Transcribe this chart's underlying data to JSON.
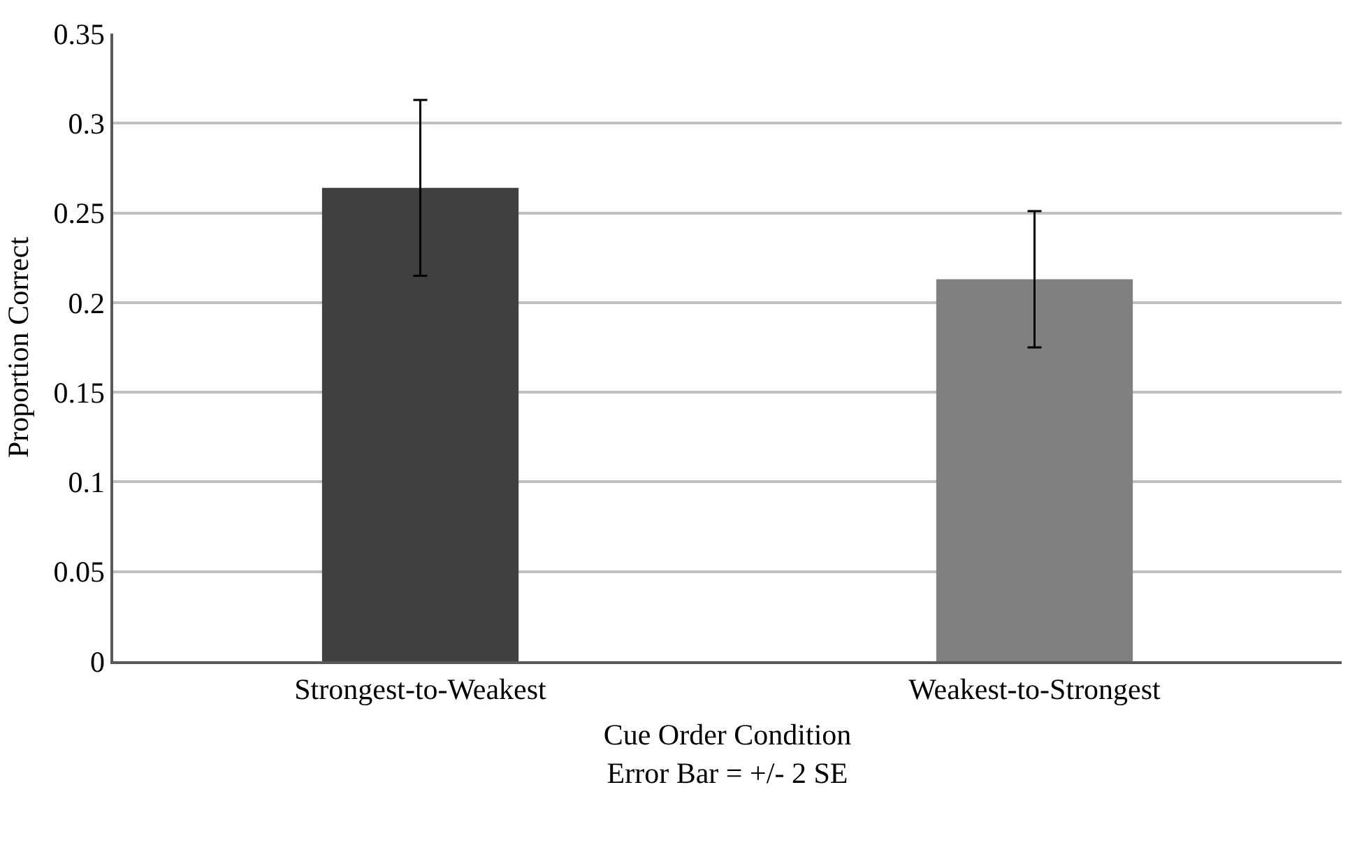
{
  "chart_data": {
    "type": "bar",
    "categories": [
      "Strongest-to-Weakest",
      "Weakest-to-Strongest"
    ],
    "values": [
      0.264,
      0.213
    ],
    "errors": [
      0.049,
      0.038
    ],
    "colors": [
      "#404040",
      "#808080"
    ],
    "xlabel": "Cue Order Condition\nError Bar = +/- 2 SE",
    "ylabel": "Proportion Correct",
    "ylim": [
      0,
      0.35
    ],
    "yticks": [
      0,
      0.05,
      0.1,
      0.15,
      0.2,
      0.25,
      0.3,
      0.35
    ],
    "grid": "y"
  }
}
